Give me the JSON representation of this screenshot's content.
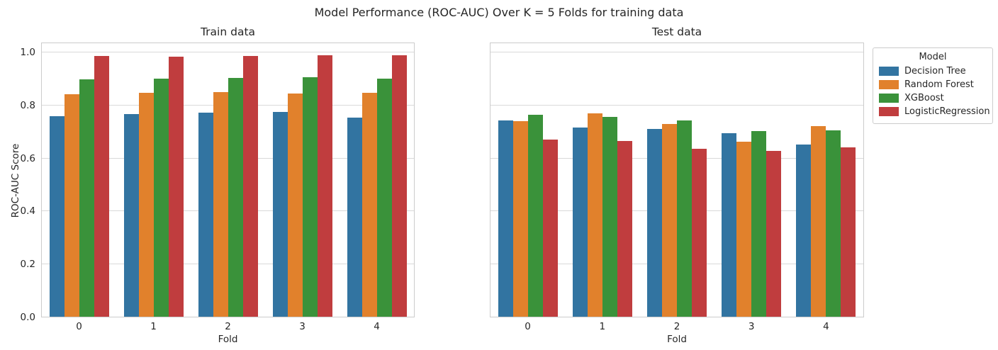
{
  "figure": {
    "suptitle": "Model Performance (ROC-AUC) Over K = 5 Folds for training data",
    "background": "#ffffff",
    "text_color": "#262626",
    "grid_color": "#d9d9d9",
    "spine_color": "#cccccc"
  },
  "chart_data": [
    {
      "type": "bar",
      "title": "Train data",
      "xlabel": "Fold",
      "ylabel": "ROC-AUC Score",
      "categories": [
        "0",
        "1",
        "2",
        "3",
        "4"
      ],
      "series": [
        {
          "name": "Decision Tree",
          "color": "#3274a1",
          "values": [
            0.757,
            0.766,
            0.771,
            0.774,
            0.751
          ]
        },
        {
          "name": "Random Forest",
          "color": "#e1812c",
          "values": [
            0.84,
            0.846,
            0.848,
            0.841,
            0.844
          ]
        },
        {
          "name": "XGBoost",
          "color": "#3a923a",
          "values": [
            0.897,
            0.899,
            0.902,
            0.903,
            0.899
          ]
        },
        {
          "name": "LogisticRegression",
          "color": "#c03d3e",
          "values": [
            0.983,
            0.982,
            0.985,
            0.986,
            0.986
          ]
        }
      ],
      "ylim": [
        0,
        1.032
      ],
      "yticks": [
        0.0,
        0.2,
        0.4,
        0.6,
        0.8,
        1.0
      ],
      "grid": true,
      "show_ytick_labels": true
    },
    {
      "type": "bar",
      "title": "Test data",
      "xlabel": "Fold",
      "ylabel": "",
      "categories": [
        "0",
        "1",
        "2",
        "3",
        "4"
      ],
      "series": [
        {
          "name": "Decision Tree",
          "color": "#3274a1",
          "values": [
            0.741,
            0.715,
            0.709,
            0.692,
            0.649
          ]
        },
        {
          "name": "Random Forest",
          "color": "#e1812c",
          "values": [
            0.739,
            0.767,
            0.727,
            0.66,
            0.718
          ]
        },
        {
          "name": "XGBoost",
          "color": "#3a923a",
          "values": [
            0.762,
            0.754,
            0.741,
            0.7,
            0.704
          ]
        },
        {
          "name": "LogisticRegression",
          "color": "#c03d3e",
          "values": [
            0.668,
            0.663,
            0.634,
            0.625,
            0.638
          ]
        }
      ],
      "ylim": [
        0,
        1.032
      ],
      "yticks": [
        0.0,
        0.2,
        0.4,
        0.6,
        0.8,
        1.0
      ],
      "grid": true,
      "show_ytick_labels": false
    }
  ],
  "legend": {
    "title": "Model",
    "entries": [
      {
        "label": "Decision Tree",
        "color": "#3274a1"
      },
      {
        "label": "Random Forest",
        "color": "#e1812c"
      },
      {
        "label": "XGBoost",
        "color": "#3a923a"
      },
      {
        "label": "LogisticRegression",
        "color": "#c03d3e"
      }
    ]
  }
}
